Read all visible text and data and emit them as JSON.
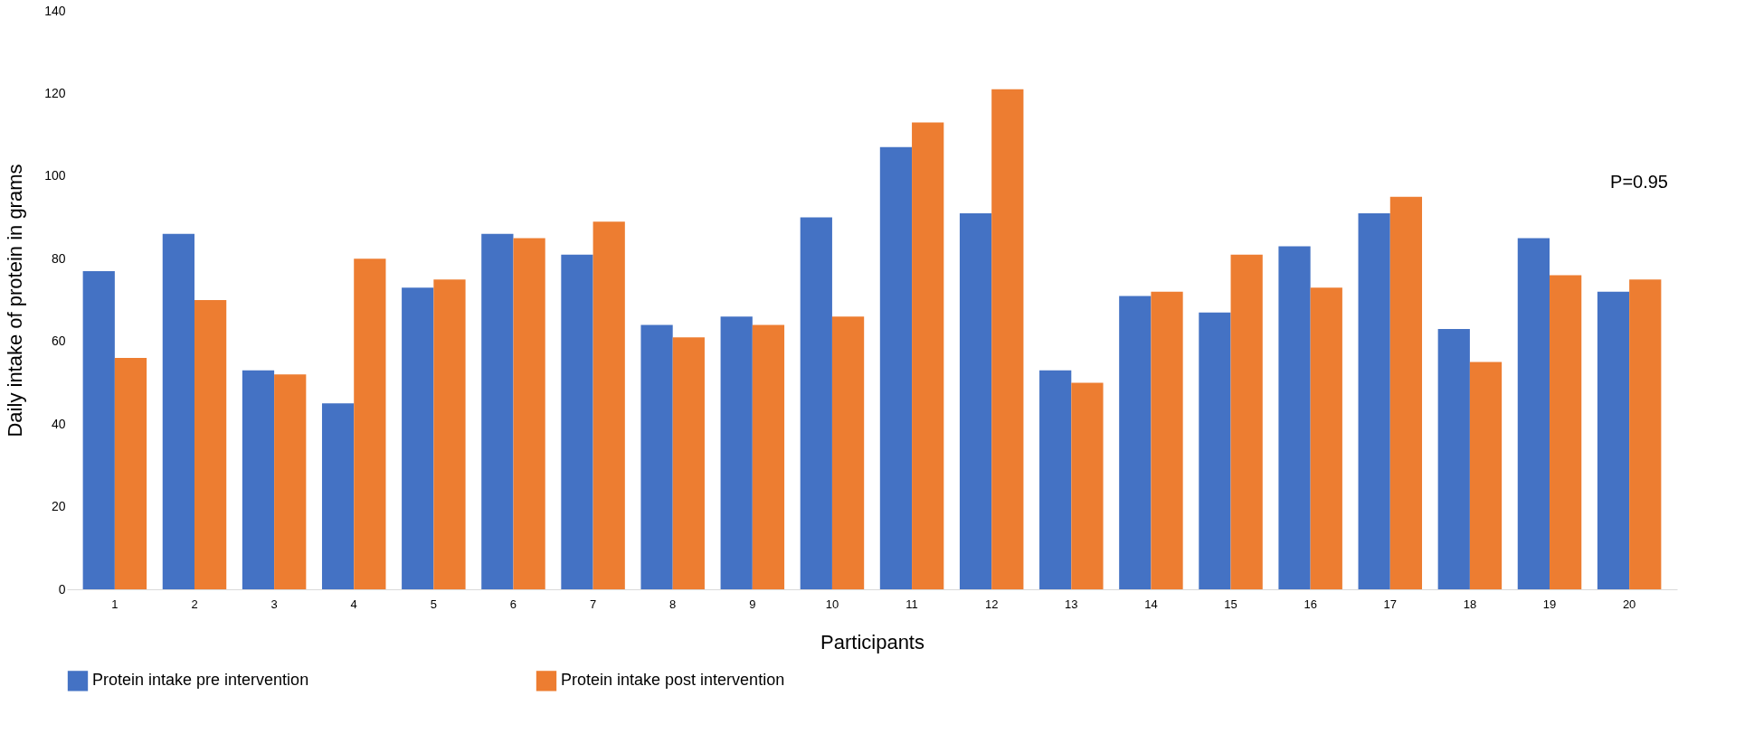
{
  "chart_data": {
    "type": "bar",
    "xlabel": "Participants",
    "ylabel": "Daily intake of protein in grams",
    "categories": [
      "1",
      "2",
      "3",
      "4",
      "5",
      "6",
      "7",
      "8",
      "9",
      "10",
      "11",
      "12",
      "13",
      "14",
      "15",
      "16",
      "17",
      "18",
      "19",
      "20"
    ],
    "series": [
      {
        "name": "Protein intake pre intervention",
        "color": "#4472c4",
        "values": [
          77,
          86,
          53,
          45,
          73,
          86,
          81,
          64,
          66,
          90,
          107,
          91,
          53,
          71,
          67,
          83,
          91,
          63,
          85,
          72
        ]
      },
      {
        "name": "Protein intake post intervention",
        "color": "#ed7d31",
        "values": [
          56,
          70,
          52,
          80,
          75,
          85,
          89,
          61,
          64,
          66,
          113,
          121,
          50,
          72,
          81,
          73,
          95,
          55,
          76,
          75
        ]
      }
    ],
    "ylim": [
      0,
      140
    ],
    "yticks": [
      0,
      20,
      40,
      60,
      80,
      100,
      120,
      140
    ],
    "grid": false,
    "legend": "bottom",
    "annotations": [
      "P=0.95"
    ]
  }
}
